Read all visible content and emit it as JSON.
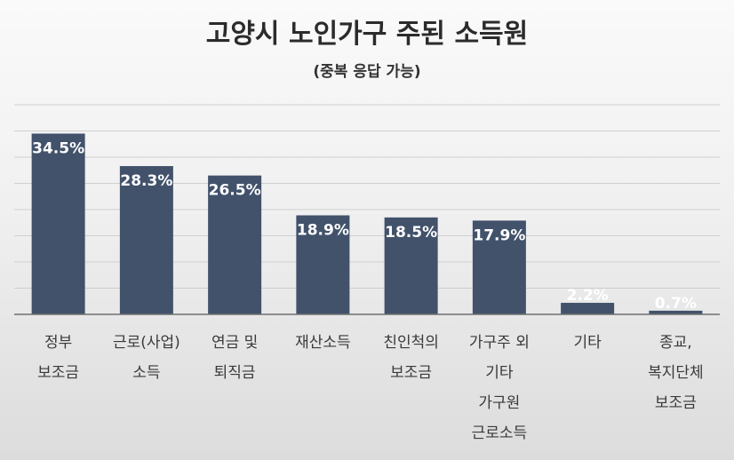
{
  "chart_data": {
    "type": "bar",
    "title": "고양시 노인가구 주된 소득원",
    "subtitle": "(중복 응답 가능)",
    "categories": [
      [
        "정부",
        "보조금"
      ],
      [
        "근로(사업)",
        "소득"
      ],
      [
        "연금 및",
        "퇴직금"
      ],
      [
        "재산소득"
      ],
      [
        "친인척의",
        "보조금"
      ],
      [
        "가구주 외",
        "기타",
        "가구원",
        "근로소득"
      ],
      [
        "기타"
      ],
      [
        "종교,",
        "복지단체",
        "보조금"
      ]
    ],
    "values": [
      34.5,
      28.3,
      26.5,
      18.9,
      18.5,
      17.9,
      2.2,
      0.7
    ],
    "data_labels": [
      "34.5%",
      "28.3%",
      "26.5%",
      "18.9%",
      "18.5%",
      "17.9%",
      "2.2%",
      "0.7%"
    ],
    "ylim": [
      0,
      40
    ],
    "grid": true,
    "legend": "none",
    "colors": {
      "bar": "#42526b",
      "label": "#ffffff",
      "grid": "#cfcfcf",
      "axis": "#6f6f6f"
    }
  }
}
